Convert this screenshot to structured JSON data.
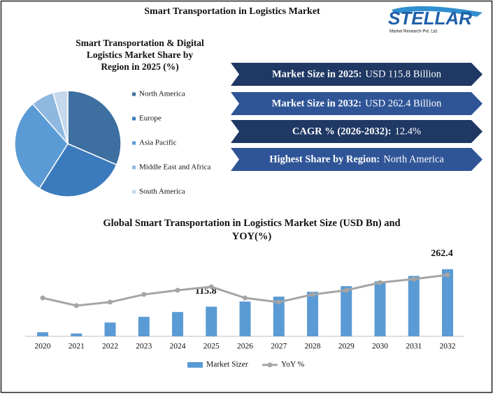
{
  "header": {
    "title": "Smart Transportation in Logistics Market"
  },
  "logo": {
    "name": "STELLAR",
    "tagline": "Market Research Pvt. Ltd."
  },
  "info_boxes": [
    {
      "label": "Market Size in 2025:",
      "value": "USD  115.8 Billion"
    },
    {
      "label": "Market Size in 2032:",
      "value": "USD 262.4 Billion"
    },
    {
      "label": "CAGR % (2026-2032):",
      "value": "12.4%"
    },
    {
      "label": "Highest Share by Region:",
      "value": "North America"
    }
  ],
  "chart_data": [
    {
      "type": "pie",
      "title": "Smart Transportation & Digital Logistics Market  Share by Region in 2025 (%)",
      "categories": [
        "North America",
        "Europe",
        "Asia Pacific",
        "Middle East and Africa",
        "South America"
      ],
      "values": [
        31.5,
        27.5,
        29.5,
        7,
        4.5
      ],
      "colors": [
        "#3d6fa0",
        "#3b7bbd",
        "#5b9bd5",
        "#8fb8e0",
        "#c6d8ec"
      ]
    },
    {
      "type": "bar",
      "title": "Global Smart Transportation in Logistics Market Size (USD Bn) and YOY(%)",
      "categories": [
        "2020",
        "2021",
        "2022",
        "2023",
        "2024",
        "2025",
        "2026",
        "2027",
        "2028",
        "2029",
        "2030",
        "2031",
        "2032"
      ],
      "series": [
        {
          "name": "Market Sizer",
          "type": "bar",
          "color": "#5b9bd5",
          "values": [
            16,
            11,
            54,
            76,
            95,
            115.8,
            136,
            155,
            174,
            196,
            215,
            236,
            262.4
          ],
          "value_labels": [
            null,
            null,
            null,
            null,
            null,
            "115.8",
            null,
            null,
            null,
            null,
            null,
            null,
            "262.4"
          ]
        },
        {
          "name": "YoY %",
          "type": "line",
          "axis": "y2",
          "color": "#a5a5a5",
          "values": [
            10,
            8,
            8.9,
            10.9,
            12,
            12.9,
            10,
            8.9,
            10.9,
            12,
            14,
            14.9,
            16
          ]
        }
      ],
      "ylim": [
        0,
        300
      ],
      "y2lim": [
        0,
        20
      ],
      "legend": "bottom"
    }
  ]
}
